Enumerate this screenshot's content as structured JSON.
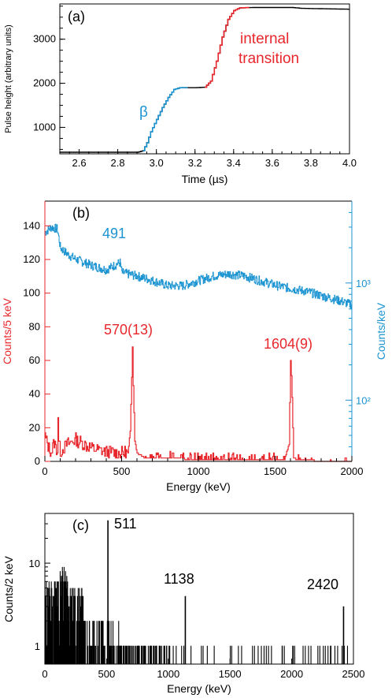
{
  "chart_data": [
    {
      "panel": "(a)",
      "type": "line",
      "ylabel": "Pulse height (arbitrary units)",
      "xlabel": "Time (µs)",
      "xlim": [
        2.5,
        4.0
      ],
      "ylim": [
        400,
        3800
      ],
      "xticks": [
        2.6,
        2.8,
        3.0,
        3.2,
        3.4,
        3.6,
        3.8,
        4.0
      ],
      "xtick_labels": [
        "2.6",
        "2.8",
        "3.0",
        "3.2",
        "3.4",
        "3.6",
        "3.8",
        "4.0"
      ],
      "yticks": [
        1000,
        2000,
        3000
      ],
      "ytick_labels": [
        "1000",
        "2000",
        "3000"
      ],
      "annotations": [
        {
          "text": "β",
          "color": "#1a93d1"
        },
        {
          "text": "internal",
          "color": "#e8272c"
        },
        {
          "text": "transition",
          "color": "#e8272c"
        }
      ],
      "series": [
        {
          "color": "#000000",
          "x": [
            2.5,
            2.9,
            2.93,
            2.95,
            2.97,
            3.0,
            3.03,
            3.06,
            3.09,
            3.12,
            3.2,
            3.25,
            3.28,
            3.31,
            3.34,
            3.37,
            3.4,
            3.43,
            3.5,
            3.7,
            3.75,
            4.0
          ],
          "y": [
            435,
            435,
            470,
            650,
            900,
            1180,
            1450,
            1680,
            1860,
            1900,
            1900,
            1910,
            2050,
            2500,
            3050,
            3450,
            3650,
            3710,
            3720,
            3720,
            3700,
            3680
          ]
        },
        {
          "color": "#1a93d1",
          "x": [
            2.93,
            2.95,
            2.97,
            3.0,
            3.03,
            3.06,
            3.09,
            3.12,
            3.16
          ],
          "y": [
            470,
            650,
            900,
            1180,
            1450,
            1680,
            1860,
            1900,
            1905
          ]
        },
        {
          "color": "#e8272c",
          "x": [
            3.25,
            3.28,
            3.31,
            3.34,
            3.37,
            3.4,
            3.43,
            3.48
          ],
          "y": [
            1910,
            2050,
            2500,
            3050,
            3450,
            3650,
            3710,
            3720
          ]
        }
      ]
    },
    {
      "panel": "(b)",
      "type": "line",
      "xlabel": "Energy (keV)",
      "ylabel_left": "Counts/5 keV",
      "ylabel_right": "Counts/keV",
      "xlim": [
        0,
        2000
      ],
      "ylim_left": [
        0,
        150
      ],
      "ylim_right_log": [
        30,
        5000
      ],
      "xticks": [
        0,
        500,
        1000,
        1500,
        2000
      ],
      "xtick_labels": [
        "0",
        "500",
        "1000",
        "1500",
        "2000"
      ],
      "yticks_left": [
        0,
        20,
        40,
        60,
        80,
        100,
        120,
        140
      ],
      "ytick_labels_left": [
        "0",
        "20",
        "40",
        "60",
        "80",
        "100",
        "120",
        "140"
      ],
      "yticks_right": [
        100,
        1000
      ],
      "ytick_labels_right": [
        "10²",
        "10³"
      ],
      "peak_labels": [
        {
          "text": "491",
          "color": "#1a93d1"
        },
        {
          "text": "570(13)",
          "color": "#e8272c"
        },
        {
          "text": "1604(9)",
          "color": "#e8272c"
        }
      ],
      "series": [
        {
          "axis": "right",
          "color": "#1a93d1",
          "x": [
            0,
            40,
            80,
            100,
            150,
            200,
            300,
            400,
            490,
            500,
            600,
            700,
            800,
            900,
            1000,
            1100,
            1200,
            1300,
            1400,
            1500,
            1600,
            1700,
            1800,
            1900,
            2000
          ],
          "y": [
            2700,
            3000,
            2900,
            2000,
            1750,
            1600,
            1420,
            1300,
            1500,
            1230,
            1150,
            1050,
            950,
            950,
            1050,
            1150,
            1200,
            1150,
            1050,
            960,
            900,
            850,
            780,
            720,
            650
          ]
        },
        {
          "axis": "left",
          "color": "#e8272c",
          "x": [
            0,
            20,
            40,
            60,
            80,
            85,
            90,
            100,
            150,
            200,
            300,
            400,
            500,
            540,
            555,
            565,
            570,
            575,
            585,
            600,
            650,
            800,
            1000,
            1200,
            1400,
            1560,
            1590,
            1600,
            1608,
            1620,
            1640,
            1700,
            1800,
            1900,
            2000
          ],
          "y": [
            14,
            8,
            5,
            10,
            6,
            27,
            10,
            5,
            10,
            12,
            7,
            5,
            4,
            5,
            18,
            50,
            68,
            45,
            12,
            5,
            2,
            2,
            1,
            1,
            1,
            1,
            10,
            60,
            45,
            2,
            1,
            1,
            0,
            0,
            0
          ]
        }
      ]
    },
    {
      "panel": "(c)",
      "type": "bar",
      "xlabel": "Energy (keV)",
      "ylabel": "Counts/2 keV",
      "xlim": [
        0,
        2500
      ],
      "ylim_log": [
        0.6,
        40
      ],
      "xticks": [
        0,
        500,
        1000,
        1500,
        2000,
        2500
      ],
      "xtick_labels": [
        "0",
        "500",
        "1000",
        "1500",
        "2000",
        "2500"
      ],
      "yticks": [
        1,
        10
      ],
      "ytick_labels": [
        "1",
        "10"
      ],
      "peak_labels": [
        {
          "text": "511"
        },
        {
          "text": "1138"
        },
        {
          "text": "2420"
        }
      ],
      "peaks": [
        {
          "x": 511,
          "y": 33
        },
        {
          "x": 1138,
          "y": 4
        },
        {
          "x": 2420,
          "y": 3
        }
      ]
    }
  ]
}
